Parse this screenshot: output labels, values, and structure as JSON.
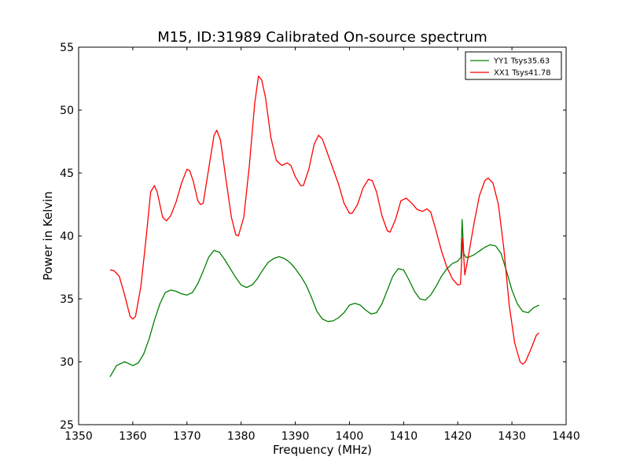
{
  "chart_data": {
    "type": "line",
    "title": "M15, ID:31989 Calibrated On-source spectrum",
    "xlabel": "Frequency (MHz)",
    "ylabel": "Power in Kelvin",
    "xlim": [
      1350,
      1440
    ],
    "ylim": [
      25,
      55
    ],
    "xticks": [
      1350,
      1360,
      1370,
      1380,
      1390,
      1400,
      1410,
      1420,
      1430,
      1440
    ],
    "yticks": [
      25,
      30,
      35,
      40,
      45,
      50,
      55
    ],
    "grid": false,
    "legend_position": "top-right",
    "series": [
      {
        "name": "YY1 Tsys35.63",
        "color": "#008000",
        "points": [
          [
            1355.8,
            28.8
          ],
          [
            1357.0,
            29.7
          ],
          [
            1358.5,
            30.0
          ],
          [
            1360.0,
            29.7
          ],
          [
            1361.0,
            29.9
          ],
          [
            1362.0,
            30.6
          ],
          [
            1363.0,
            31.8
          ],
          [
            1364.0,
            33.3
          ],
          [
            1365.0,
            34.6
          ],
          [
            1366.0,
            35.5
          ],
          [
            1367.0,
            35.7
          ],
          [
            1368.0,
            35.6
          ],
          [
            1369.0,
            35.4
          ],
          [
            1370.0,
            35.3
          ],
          [
            1371.0,
            35.5
          ],
          [
            1372.0,
            36.2
          ],
          [
            1373.0,
            37.2
          ],
          [
            1374.0,
            38.3
          ],
          [
            1375.0,
            38.85
          ],
          [
            1376.0,
            38.7
          ],
          [
            1377.0,
            38.1
          ],
          [
            1378.0,
            37.4
          ],
          [
            1379.0,
            36.7
          ],
          [
            1380.0,
            36.1
          ],
          [
            1381.0,
            35.9
          ],
          [
            1382.0,
            36.1
          ],
          [
            1383.0,
            36.6
          ],
          [
            1384.0,
            37.3
          ],
          [
            1385.0,
            37.9
          ],
          [
            1386.0,
            38.2
          ],
          [
            1387.0,
            38.35
          ],
          [
            1388.0,
            38.2
          ],
          [
            1389.0,
            37.9
          ],
          [
            1390.0,
            37.4
          ],
          [
            1391.0,
            36.8
          ],
          [
            1392.0,
            36.1
          ],
          [
            1393.0,
            35.1
          ],
          [
            1394.0,
            34.0
          ],
          [
            1395.0,
            33.4
          ],
          [
            1396.0,
            33.2
          ],
          [
            1397.0,
            33.25
          ],
          [
            1398.0,
            33.5
          ],
          [
            1399.0,
            33.9
          ],
          [
            1400.0,
            34.5
          ],
          [
            1401.0,
            34.65
          ],
          [
            1402.0,
            34.5
          ],
          [
            1403.0,
            34.1
          ],
          [
            1404.0,
            33.8
          ],
          [
            1405.0,
            33.9
          ],
          [
            1406.0,
            34.6
          ],
          [
            1407.0,
            35.7
          ],
          [
            1408.0,
            36.8
          ],
          [
            1409.0,
            37.4
          ],
          [
            1410.0,
            37.3
          ],
          [
            1411.0,
            36.5
          ],
          [
            1412.0,
            35.6
          ],
          [
            1413.0,
            35.0
          ],
          [
            1414.0,
            34.9
          ],
          [
            1415.0,
            35.3
          ],
          [
            1416.0,
            36.0
          ],
          [
            1417.0,
            36.8
          ],
          [
            1418.0,
            37.4
          ],
          [
            1419.0,
            37.8
          ],
          [
            1420.0,
            38.0
          ],
          [
            1420.6,
            38.3
          ],
          [
            1420.8,
            41.3
          ],
          [
            1421.1,
            38.6
          ],
          [
            1421.5,
            38.3
          ],
          [
            1422.0,
            38.3
          ],
          [
            1423.0,
            38.5
          ],
          [
            1424.0,
            38.8
          ],
          [
            1425.0,
            39.1
          ],
          [
            1426.0,
            39.3
          ],
          [
            1427.0,
            39.2
          ],
          [
            1428.0,
            38.6
          ],
          [
            1429.0,
            37.2
          ],
          [
            1430.0,
            35.7
          ],
          [
            1431.0,
            34.6
          ],
          [
            1432.0,
            34.0
          ],
          [
            1433.0,
            33.9
          ],
          [
            1434.0,
            34.3
          ],
          [
            1435.0,
            34.5
          ]
        ]
      },
      {
        "name": "XX1 Tsys41.78",
        "color": "#ff0000",
        "points": [
          [
            1355.8,
            37.3
          ],
          [
            1356.5,
            37.25
          ],
          [
            1357.5,
            36.8
          ],
          [
            1358.5,
            35.3
          ],
          [
            1359.5,
            33.6
          ],
          [
            1360.0,
            33.4
          ],
          [
            1360.5,
            33.6
          ],
          [
            1361.5,
            36.0
          ],
          [
            1362.5,
            40.0
          ],
          [
            1363.3,
            43.5
          ],
          [
            1364.0,
            44.0
          ],
          [
            1364.5,
            43.5
          ],
          [
            1365.5,
            41.5
          ],
          [
            1366.2,
            41.2
          ],
          [
            1367.0,
            41.6
          ],
          [
            1368.0,
            42.7
          ],
          [
            1369.0,
            44.2
          ],
          [
            1370.0,
            45.3
          ],
          [
            1370.5,
            45.2
          ],
          [
            1371.2,
            44.3
          ],
          [
            1372.0,
            42.8
          ],
          [
            1372.5,
            42.5
          ],
          [
            1373.0,
            42.6
          ],
          [
            1374.0,
            45.3
          ],
          [
            1375.0,
            48.0
          ],
          [
            1375.5,
            48.4
          ],
          [
            1376.2,
            47.6
          ],
          [
            1377.2,
            44.5
          ],
          [
            1378.2,
            41.5
          ],
          [
            1379.0,
            40.1
          ],
          [
            1379.5,
            40.0
          ],
          [
            1380.5,
            41.5
          ],
          [
            1381.5,
            45.5
          ],
          [
            1382.5,
            50.5
          ],
          [
            1383.2,
            52.7
          ],
          [
            1383.8,
            52.4
          ],
          [
            1384.5,
            51.0
          ],
          [
            1385.5,
            47.8
          ],
          [
            1386.5,
            46.0
          ],
          [
            1387.5,
            45.6
          ],
          [
            1388.5,
            45.8
          ],
          [
            1389.2,
            45.6
          ],
          [
            1390.0,
            44.7
          ],
          [
            1391.0,
            44.0
          ],
          [
            1391.5,
            44.0
          ],
          [
            1392.5,
            45.3
          ],
          [
            1393.5,
            47.3
          ],
          [
            1394.3,
            48.0
          ],
          [
            1395.0,
            47.7
          ],
          [
            1396.0,
            46.5
          ],
          [
            1397.0,
            45.3
          ],
          [
            1398.0,
            44.1
          ],
          [
            1399.0,
            42.6
          ],
          [
            1400.0,
            41.8
          ],
          [
            1400.5,
            41.8
          ],
          [
            1401.5,
            42.5
          ],
          [
            1402.5,
            43.8
          ],
          [
            1403.5,
            44.5
          ],
          [
            1404.2,
            44.4
          ],
          [
            1405.0,
            43.5
          ],
          [
            1406.0,
            41.6
          ],
          [
            1407.0,
            40.4
          ],
          [
            1407.5,
            40.3
          ],
          [
            1408.5,
            41.3
          ],
          [
            1409.5,
            42.8
          ],
          [
            1410.5,
            43.0
          ],
          [
            1411.5,
            42.6
          ],
          [
            1412.5,
            42.1
          ],
          [
            1413.5,
            41.95
          ],
          [
            1414.3,
            42.15
          ],
          [
            1415.0,
            41.9
          ],
          [
            1416.0,
            40.4
          ],
          [
            1417.0,
            38.8
          ],
          [
            1418.0,
            37.5
          ],
          [
            1419.0,
            36.6
          ],
          [
            1420.0,
            36.1
          ],
          [
            1420.5,
            36.15
          ],
          [
            1420.9,
            39.8
          ],
          [
            1421.3,
            36.9
          ],
          [
            1422.0,
            38.5
          ],
          [
            1423.0,
            41.0
          ],
          [
            1424.0,
            43.2
          ],
          [
            1425.0,
            44.4
          ],
          [
            1425.6,
            44.6
          ],
          [
            1426.5,
            44.2
          ],
          [
            1427.5,
            42.5
          ],
          [
            1428.5,
            39.0
          ],
          [
            1429.5,
            34.5
          ],
          [
            1430.5,
            31.5
          ],
          [
            1431.5,
            30.0
          ],
          [
            1432.0,
            29.8
          ],
          [
            1432.5,
            30.0
          ],
          [
            1433.5,
            31.0
          ],
          [
            1434.5,
            32.1
          ],
          [
            1435.0,
            32.3
          ]
        ]
      }
    ]
  }
}
